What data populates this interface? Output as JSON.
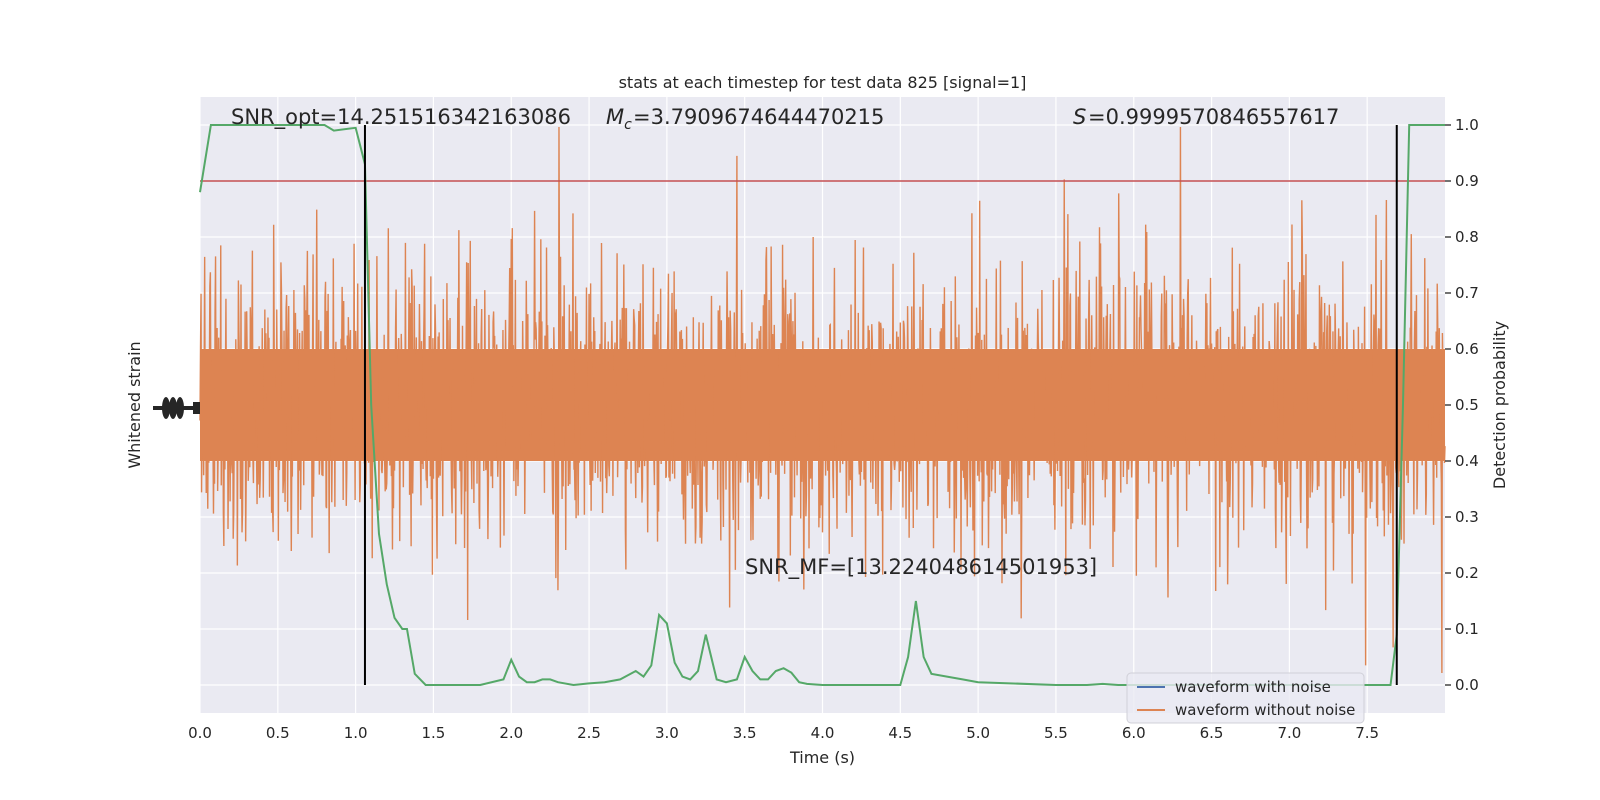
{
  "chart_data": {
    "type": "line",
    "title": "stats at each timestep for test data 825 [signal=1]",
    "xlabel": "Time (s)",
    "ylabel_left": "Whitened strain",
    "ylabel_right": "Detection probability",
    "xlim": [
      0.0,
      8.0
    ],
    "ylim_right": [
      -0.05,
      1.05
    ],
    "x_ticks": [
      0.0,
      0.5,
      1.0,
      1.5,
      2.0,
      2.5,
      3.0,
      3.5,
      4.0,
      4.5,
      5.0,
      5.5,
      6.0,
      6.5,
      7.0,
      7.5
    ],
    "x_tick_labels": [
      "0.0",
      "0.5",
      "1.0",
      "1.5",
      "2.0",
      "2.5",
      "3.0",
      "3.5",
      "4.0",
      "4.5",
      "5.0",
      "5.5",
      "6.0",
      "6.5",
      "7.0",
      "7.5"
    ],
    "y_right_ticks": [
      0.0,
      0.1,
      0.2,
      0.3,
      0.4,
      0.5,
      0.6,
      0.7,
      0.8,
      0.9,
      1.0
    ],
    "y_right_tick_labels": [
      "0.0",
      "0.1",
      "0.2",
      "0.3",
      "0.4",
      "0.5",
      "0.6",
      "0.7",
      "0.8",
      "0.9",
      "1.0"
    ],
    "grid": true,
    "legend_position": "bottom-right",
    "threshold": 0.9,
    "vertical_markers": [
      1.06,
      7.69
    ],
    "annotations": {
      "snr_opt": "SNR_opt=14.251516342163086",
      "mc": "=3.7909674644470215",
      "s_stat": "=0.9999570846557617",
      "snr_mf": "SNR_MF=[13.224048614501953]"
    },
    "series": [
      {
        "name": "waveform with noise",
        "color": "#4c72b0"
      },
      {
        "name": "waveform without noise",
        "color": "#dd8452"
      },
      {
        "color": "#55a868",
        "x": [
          0.0,
          0.07,
          0.15,
          0.25,
          0.4,
          0.6,
          0.8,
          0.86,
          1.0,
          1.06,
          1.1,
          1.15,
          1.2,
          1.25,
          1.3,
          1.33,
          1.38,
          1.45,
          1.6,
          1.8,
          1.95,
          2.0,
          2.05,
          2.1,
          2.15,
          2.2,
          2.25,
          2.3,
          2.4,
          2.5,
          2.6,
          2.7,
          2.8,
          2.85,
          2.9,
          2.95,
          3.0,
          3.05,
          3.1,
          3.15,
          3.2,
          3.25,
          3.32,
          3.38,
          3.45,
          3.5,
          3.55,
          3.6,
          3.65,
          3.7,
          3.75,
          3.8,
          3.85,
          3.9,
          4.0,
          4.3,
          4.5,
          4.55,
          4.6,
          4.65,
          4.7,
          4.8,
          4.9,
          5.0,
          5.5,
          5.7,
          5.8,
          5.9,
          6.0,
          6.2,
          6.5,
          6.8,
          7.0,
          7.3,
          7.6,
          7.65,
          7.69,
          7.73,
          7.77,
          7.85,
          8.0
        ],
        "y": [
          0.88,
          1.0,
          1.0,
          1.0,
          1.0,
          1.0,
          1.0,
          0.99,
          0.995,
          0.93,
          0.5,
          0.27,
          0.18,
          0.12,
          0.1,
          0.1,
          0.02,
          0.0,
          0.0,
          0.0,
          0.01,
          0.045,
          0.015,
          0.005,
          0.005,
          0.01,
          0.01,
          0.005,
          0.0,
          0.003,
          0.005,
          0.01,
          0.025,
          0.015,
          0.035,
          0.125,
          0.11,
          0.04,
          0.015,
          0.01,
          0.025,
          0.09,
          0.01,
          0.005,
          0.01,
          0.05,
          0.025,
          0.01,
          0.01,
          0.025,
          0.03,
          0.022,
          0.005,
          0.002,
          0.0,
          0.0,
          0.0,
          0.05,
          0.15,
          0.05,
          0.02,
          0.015,
          0.01,
          0.005,
          0.0,
          0.0,
          0.002,
          0.0,
          0.0,
          0.0,
          0.0,
          0.0,
          0.0,
          0.0,
          0.0,
          0.0,
          0.09,
          0.5,
          1.0,
          1.0,
          1.0
        ]
      }
    ]
  }
}
